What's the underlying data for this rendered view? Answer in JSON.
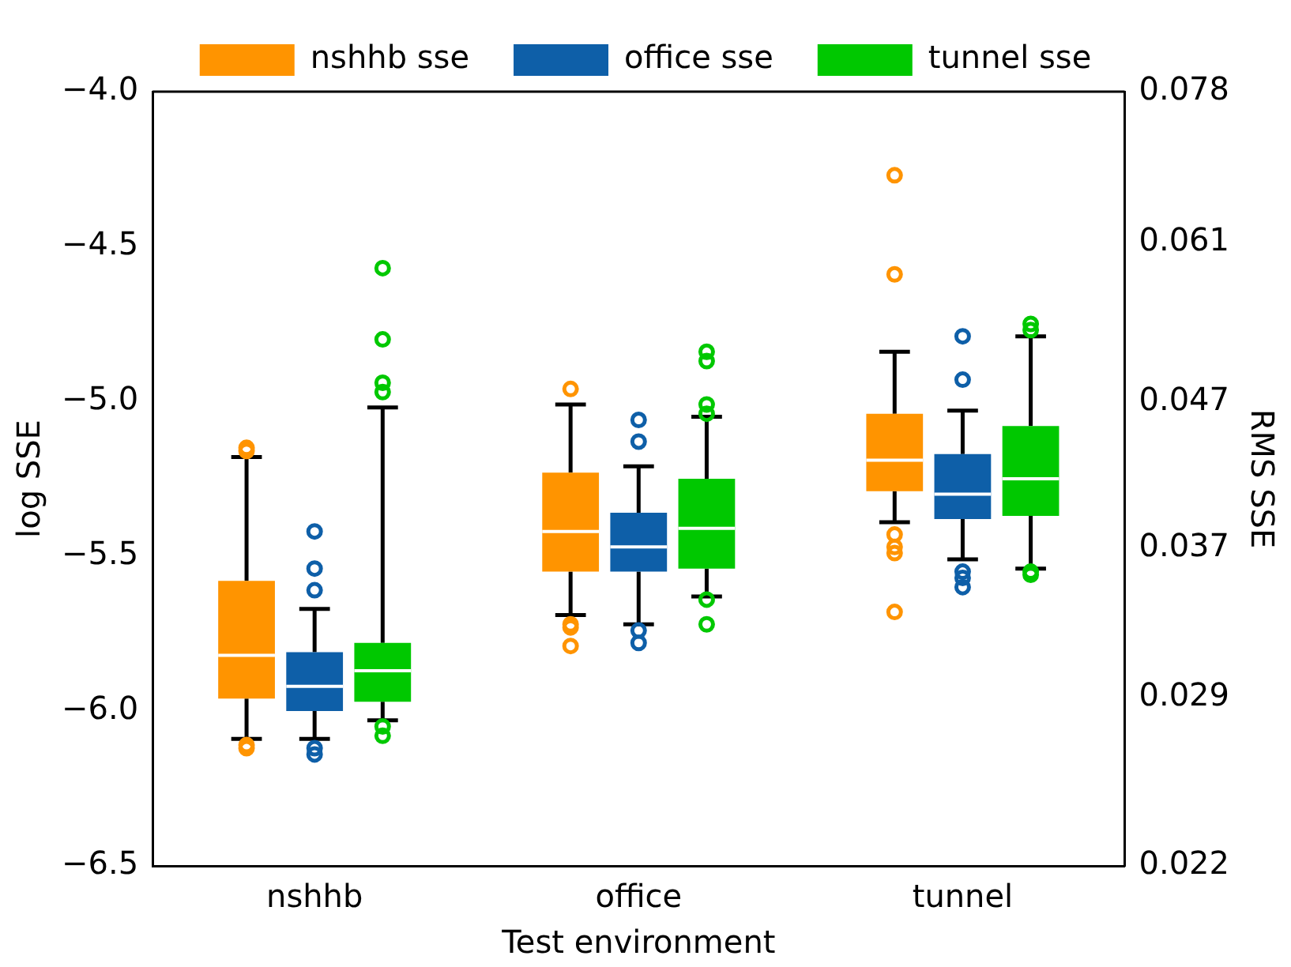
{
  "chart_data": {
    "type": "box",
    "xlabel": "Test environment",
    "ylabel": "log SSE",
    "y2label": "RMS SSE",
    "categories": [
      "nshhb",
      "office",
      "tunnel"
    ],
    "ylim": [
      -6.5,
      -4.0
    ],
    "yticks": [
      {
        "value": -6.5,
        "label": "−6.5"
      },
      {
        "value": -6.0,
        "label": "−6.0"
      },
      {
        "value": -5.5,
        "label": "−5.5"
      },
      {
        "value": -5.0,
        "label": "−5.0"
      },
      {
        "value": -4.5,
        "label": "−4.5"
      },
      {
        "value": -4.0,
        "label": "−4.0"
      }
    ],
    "y2lim": [
      0.022,
      0.078
    ],
    "log": "y2",
    "y2ticks": [
      0.022,
      0.029,
      0.037,
      0.047,
      0.061,
      0.078
    ],
    "grid": false,
    "legend": "top",
    "series": [
      {
        "name": "nshhb sse",
        "color": "#ff9400",
        "boxes": [
          {
            "low": -6.09,
            "q1": -5.96,
            "median": -5.82,
            "q3": -5.58,
            "high": -5.18,
            "outliers": [
              -5.15,
              -5.16,
              -6.11,
              -6.12
            ]
          },
          {
            "low": -5.69,
            "q1": -5.55,
            "median": -5.42,
            "q3": -5.23,
            "high": -5.01,
            "outliers": [
              -4.96,
              -5.72,
              -5.73,
              -5.79
            ]
          },
          {
            "low": -5.39,
            "q1": -5.29,
            "median": -5.19,
            "q3": -5.04,
            "high": -4.84,
            "outliers": [
              -4.27,
              -4.59,
              -5.43,
              -5.47,
              -5.49,
              -5.68
            ]
          }
        ]
      },
      {
        "name": "office sse",
        "color": "#0e5fa8",
        "boxes": [
          {
            "low": -6.09,
            "q1": -6.0,
            "median": -5.92,
            "q3": -5.81,
            "high": -5.67,
            "outliers": [
              -5.42,
              -5.54,
              -5.61,
              -6.12,
              -6.14
            ]
          },
          {
            "low": -5.72,
            "q1": -5.55,
            "median": -5.47,
            "q3": -5.36,
            "high": -5.21,
            "outliers": [
              -5.06,
              -5.13,
              -5.74,
              -5.78
            ]
          },
          {
            "low": -5.51,
            "q1": -5.38,
            "median": -5.3,
            "q3": -5.17,
            "high": -5.03,
            "outliers": [
              -4.79,
              -4.93,
              -5.55,
              -5.57,
              -5.6
            ]
          }
        ]
      },
      {
        "name": "tunnel sse",
        "color": "#00c800",
        "boxes": [
          {
            "low": -6.03,
            "q1": -5.97,
            "median": -5.87,
            "q3": -5.78,
            "high": -5.02,
            "outliers": [
              -4.57,
              -4.8,
              -4.94,
              -4.97,
              -6.05,
              -6.08
            ]
          },
          {
            "low": -5.63,
            "q1": -5.54,
            "median": -5.41,
            "q3": -5.25,
            "high": -5.05,
            "outliers": [
              -4.84,
              -4.87,
              -5.01,
              -5.04,
              -5.64,
              -5.72
            ]
          },
          {
            "low": -5.54,
            "q1": -5.37,
            "median": -5.25,
            "q3": -5.08,
            "high": -4.79,
            "outliers": [
              -4.75,
              -4.77,
              -5.55,
              -5.56
            ]
          }
        ]
      }
    ]
  }
}
